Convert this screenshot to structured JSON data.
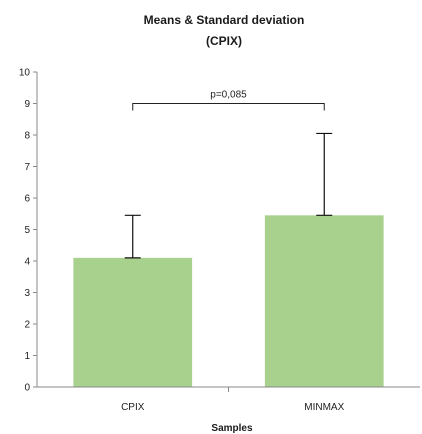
{
  "chart_data": {
    "type": "bar",
    "title": "Means & Standard deviation",
    "subtitle": "(CPIX)",
    "xlabel": "Samples",
    "ylabel": "",
    "categories": [
      "CPIX",
      "MINMAX"
    ],
    "values": [
      4.1,
      5.45
    ],
    "error_upper": [
      1.35,
      2.6
    ],
    "ylim": [
      0,
      10
    ],
    "yticks": [
      "0",
      "1",
      "2",
      "3",
      "4",
      "5",
      "6",
      "7",
      "8",
      "9",
      "10"
    ],
    "bar_color": "#a9d18e",
    "grid": false,
    "legend": "none",
    "annotation": {
      "text": "p=0,085",
      "bracket_y": 9.0
    }
  }
}
